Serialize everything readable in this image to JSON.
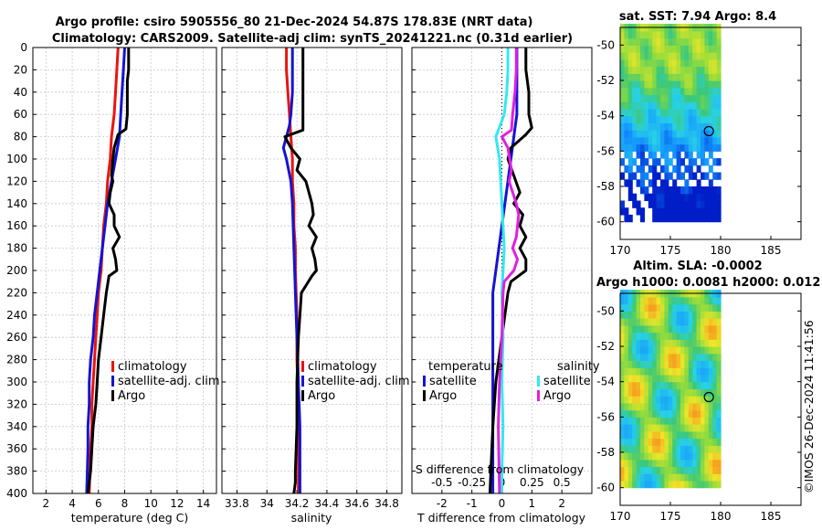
{
  "title": {
    "line1": "Argo profile: csiro 5905556_80 21-Dec-2024 54.87S 178.83E (NRT data)",
    "line2": "Climatology: CARS2009. Satellite-adj clim: synTS_20241221.nc (0.31d earlier)"
  },
  "colors": {
    "climatology": "#e8150f",
    "satellite": "#1414d2",
    "argo": "#000000",
    "cyan": "#33e8f0",
    "magenta": "#e020e0"
  },
  "depth_ticks": [
    "0",
    "20",
    "40",
    "60",
    "80",
    "100",
    "120",
    "140",
    "160",
    "180",
    "200",
    "220",
    "240",
    "260",
    "280",
    "300",
    "320",
    "340",
    "360",
    "380",
    "400"
  ],
  "chart_data": [
    {
      "type": "line",
      "id": "temperature",
      "xlabel": "temperature (deg C)",
      "ylabel": "",
      "xlim": [
        1,
        15
      ],
      "ylim": [
        400,
        0
      ],
      "xticks": [
        2,
        4,
        6,
        8,
        10,
        12,
        14
      ],
      "legend": [
        "climatology",
        "satellite-adj. clim",
        "Argo"
      ],
      "series": [
        {
          "name": "climatology",
          "color": "#e8150f",
          "x": [
            7.5,
            7.4,
            7.3,
            7.2,
            7.0,
            6.9,
            6.7,
            6.6,
            6.4,
            6.3,
            6.2,
            6.0,
            5.9,
            5.8,
            5.7,
            5.6,
            5.5,
            5.5,
            5.4,
            5.3
          ],
          "y": [
            0,
            20,
            40,
            60,
            80,
            100,
            120,
            140,
            160,
            180,
            200,
            220,
            240,
            260,
            280,
            300,
            320,
            340,
            360,
            400
          ]
        },
        {
          "name": "satellite-adj. clim",
          "color": "#1414d2",
          "x": [
            8.0,
            7.9,
            7.8,
            7.7,
            7.6,
            7.3,
            7.0,
            6.7,
            6.5,
            6.3,
            6.1,
            5.9,
            5.7,
            5.6,
            5.4,
            5.3,
            5.3,
            5.2,
            5.2,
            5.1
          ],
          "y": [
            0,
            20,
            40,
            60,
            80,
            100,
            120,
            140,
            160,
            180,
            200,
            220,
            240,
            260,
            280,
            300,
            320,
            340,
            360,
            400
          ]
        },
        {
          "name": "Argo",
          "color": "#000000",
          "x": [
            8.3,
            8.3,
            8.2,
            8.2,
            8.1,
            7.5,
            7.2,
            7.1,
            7.0,
            7.1,
            6.9,
            6.8,
            7.2,
            7.2,
            7.6,
            7.1,
            7.3,
            7.4,
            6.8,
            6.6,
            6.4,
            6.2,
            6.0,
            5.9,
            5.8,
            5.6,
            5.5,
            5.4,
            5.3,
            5.2
          ],
          "y": [
            0,
            20,
            30,
            60,
            73,
            78,
            90,
            100,
            115,
            120,
            130,
            140,
            150,
            160,
            170,
            180,
            190,
            200,
            205,
            220,
            240,
            260,
            280,
            300,
            320,
            340,
            360,
            380,
            390,
            400
          ]
        }
      ]
    },
    {
      "type": "line",
      "id": "salinity",
      "xlabel": "salinity",
      "ylabel": "",
      "xlim": [
        33.7,
        34.9
      ],
      "ylim": [
        400,
        0
      ],
      "xticks": [
        33.8,
        34,
        34.2,
        34.4,
        34.6,
        34.8
      ],
      "legend": [
        "climatology",
        "satellite-adj. clim",
        "Argo"
      ],
      "series": [
        {
          "name": "climatology",
          "color": "#e8150f",
          "x": [
            34.13,
            34.13,
            34.14,
            34.15,
            34.16,
            34.17,
            34.17,
            34.18,
            34.18,
            34.19,
            34.19,
            34.2,
            34.2,
            34.21,
            34.21,
            34.21,
            34.21
          ],
          "y": [
            0,
            20,
            40,
            60,
            80,
            100,
            120,
            140,
            160,
            180,
            200,
            240,
            280,
            320,
            360,
            380,
            400
          ]
        },
        {
          "name": "satellite-adj. clim",
          "color": "#1414d2",
          "x": [
            34.17,
            34.17,
            34.17,
            34.16,
            34.15,
            34.13,
            34.11,
            34.13,
            34.16,
            34.17,
            34.18,
            34.19,
            34.2,
            34.21,
            34.22,
            34.22,
            34.22
          ],
          "y": [
            0,
            20,
            40,
            60,
            70,
            80,
            90,
            100,
            120,
            140,
            180,
            220,
            260,
            300,
            340,
            380,
            400
          ]
        },
        {
          "name": "Argo",
          "color": "#000000",
          "x": [
            34.24,
            34.24,
            34.24,
            34.24,
            34.24,
            34.12,
            34.16,
            34.22,
            34.2,
            34.26,
            34.29,
            34.3,
            34.31,
            34.28,
            34.33,
            34.3,
            34.32,
            34.33,
            34.3,
            34.23,
            34.22,
            34.21,
            34.2,
            34.2,
            34.19,
            34.19,
            34.18
          ],
          "y": [
            0,
            20,
            40,
            60,
            74,
            80,
            90,
            100,
            110,
            120,
            135,
            140,
            150,
            160,
            170,
            180,
            190,
            200,
            205,
            220,
            240,
            260,
            300,
            340,
            380,
            390,
            400
          ]
        }
      ]
    },
    {
      "type": "line",
      "id": "difference",
      "xlabel": "T difference from climatology",
      "ylabel": "",
      "top_label": "S difference from climatology",
      "xlim": [
        -3,
        3
      ],
      "ylim": [
        400,
        0
      ],
      "xticks": [
        -2,
        -1,
        0,
        1,
        2
      ],
      "xticklabels": [
        "-2",
        "-1",
        "0",
        "1",
        "2"
      ],
      "s_xlim": [
        -0.75,
        0.75
      ],
      "s_xticks": [
        -0.5,
        -0.25,
        0,
        0.25,
        0.5
      ],
      "s_xticklabels": [
        "-0.5",
        "-0.25",
        "0",
        "0.25",
        "0.5"
      ],
      "legend_headers": [
        "temperature",
        "salinity"
      ],
      "legend_left": [
        "satellite",
        "Argo"
      ],
      "legend_right": [
        "satellite",
        "Argo"
      ],
      "series": [
        {
          "name": "T satellite",
          "color": "#1414d2",
          "axis": "T",
          "x": [
            0.5,
            0.5,
            0.5,
            0.5,
            0.4,
            0.3,
            0.2,
            0.1,
            0.0,
            -0.1,
            -0.2,
            -0.3,
            -0.3,
            -0.3,
            -0.3,
            -0.3,
            -0.3,
            -0.3
          ],
          "y": [
            0,
            20,
            40,
            60,
            80,
            100,
            120,
            140,
            160,
            180,
            200,
            220,
            260,
            300,
            320,
            340,
            380,
            400
          ]
        },
        {
          "name": "T Argo",
          "color": "#000000",
          "axis": "T",
          "x": [
            0.8,
            0.8,
            0.9,
            0.9,
            1.0,
            0.8,
            0.3,
            0.2,
            0.4,
            0.6,
            0.4,
            0.7,
            0.6,
            0.8,
            0.6,
            0.8,
            0.8,
            0.3,
            0.2,
            0.1,
            0.0,
            -0.1,
            -0.2,
            -0.3,
            -0.4
          ],
          "y": [
            0,
            20,
            40,
            60,
            72,
            78,
            90,
            100,
            115,
            130,
            140,
            150,
            160,
            170,
            180,
            190,
            200,
            210,
            220,
            240,
            260,
            280,
            300,
            340,
            400
          ]
        },
        {
          "name": "S satellite",
          "color": "#33e8f0",
          "axis": "S",
          "x": [
            0.05,
            0.05,
            0.04,
            0.02,
            -0.05,
            -0.02,
            -0.01,
            0.0,
            0.02,
            0.0,
            0.01,
            0.0,
            0.01,
            0.0,
            0.0
          ],
          "y": [
            0,
            20,
            40,
            60,
            80,
            100,
            120,
            140,
            180,
            220,
            260,
            300,
            340,
            380,
            400
          ]
        },
        {
          "name": "S Argo",
          "color": "#e020e0",
          "axis": "S",
          "x": [
            0.12,
            0.12,
            0.11,
            0.09,
            0.08,
            0.0,
            0.05,
            0.08,
            0.06,
            0.12,
            0.14,
            0.13,
            0.12,
            0.09,
            0.13,
            0.1,
            0.02,
            0.01,
            0.0,
            -0.02,
            -0.03,
            -0.02
          ],
          "y": [
            0,
            20,
            40,
            60,
            74,
            80,
            90,
            110,
            120,
            140,
            150,
            160,
            170,
            180,
            190,
            200,
            210,
            220,
            260,
            300,
            340,
            400
          ]
        }
      ]
    },
    {
      "type": "heatmap",
      "id": "sst-map",
      "title": "sat. SST: 7.94 Argo: 8.4",
      "xlim": [
        170,
        188
      ],
      "ylim": [
        -61,
        -49
      ],
      "xticks": [
        170,
        175,
        180,
        185
      ],
      "yticks": [
        -50,
        -52,
        -54,
        -56,
        -58,
        -60
      ],
      "marker": {
        "lon": 178.83,
        "lat": -54.87
      }
    },
    {
      "type": "heatmap",
      "id": "sla-map",
      "title": "Altim. SLA: -0.0002",
      "subtitle": "Argo h1000: 0.0081 h2000: 0.012",
      "xlim": [
        170,
        188
      ],
      "ylim": [
        -61,
        -49
      ],
      "xticks": [
        170,
        175,
        180,
        185
      ],
      "yticks": [
        -50,
        -52,
        -54,
        -56,
        -58,
        -60
      ],
      "marker": {
        "lon": 178.83,
        "lat": -54.87
      }
    }
  ],
  "watermark": "©IMOS 26-Dec-2024 11:41:56"
}
